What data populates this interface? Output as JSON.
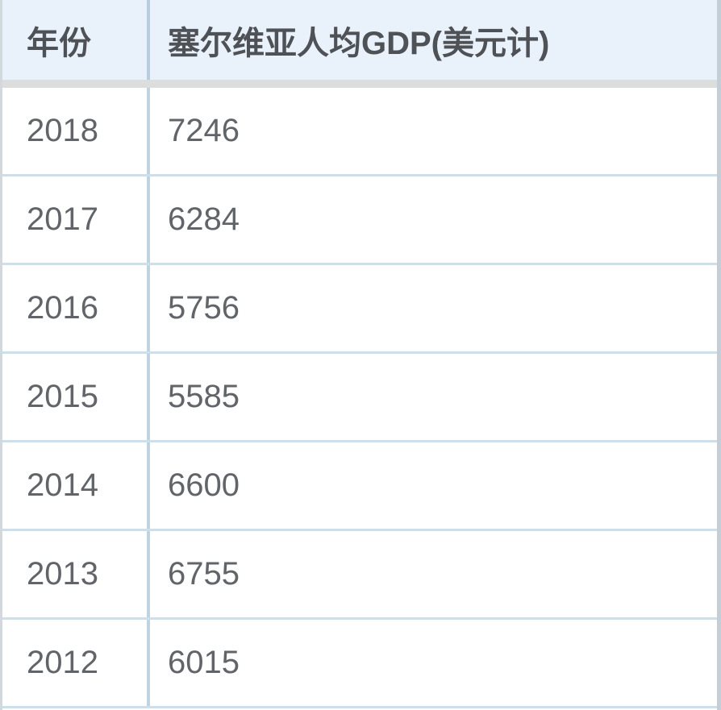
{
  "table": {
    "columns": [
      {
        "label": "年份"
      },
      {
        "label": "塞尔维亚人均GDP(美元计)"
      }
    ],
    "rows": [
      {
        "year": "2018",
        "value": "7246"
      },
      {
        "year": "2017",
        "value": "6284"
      },
      {
        "year": "2016",
        "value": "5756"
      },
      {
        "year": "2015",
        "value": "5585"
      },
      {
        "year": "2014",
        "value": "6600"
      },
      {
        "year": "2013",
        "value": "6755"
      },
      {
        "year": "2012",
        "value": "6015"
      }
    ]
  },
  "colors": {
    "header_bg": "#e9f2fa",
    "header_separator_gray": "#dcdddd",
    "row_divider_blue": "#cfdfe9",
    "column_divider_blue": "#b6cddd",
    "text": "#616468",
    "header_text": "#4e5155"
  },
  "chart_data": {
    "type": "table",
    "title": "塞尔维亚人均GDP(美元计)",
    "columns": [
      "年份",
      "塞尔维亚人均GDP(美元计)"
    ],
    "categories": [
      "2018",
      "2017",
      "2016",
      "2015",
      "2014",
      "2013",
      "2012"
    ],
    "values": [
      7246,
      6284,
      5756,
      5585,
      6600,
      6755,
      6015
    ],
    "layout": "two-column data table, header row highlighted light blue, last row clipped at bottom edge"
  }
}
